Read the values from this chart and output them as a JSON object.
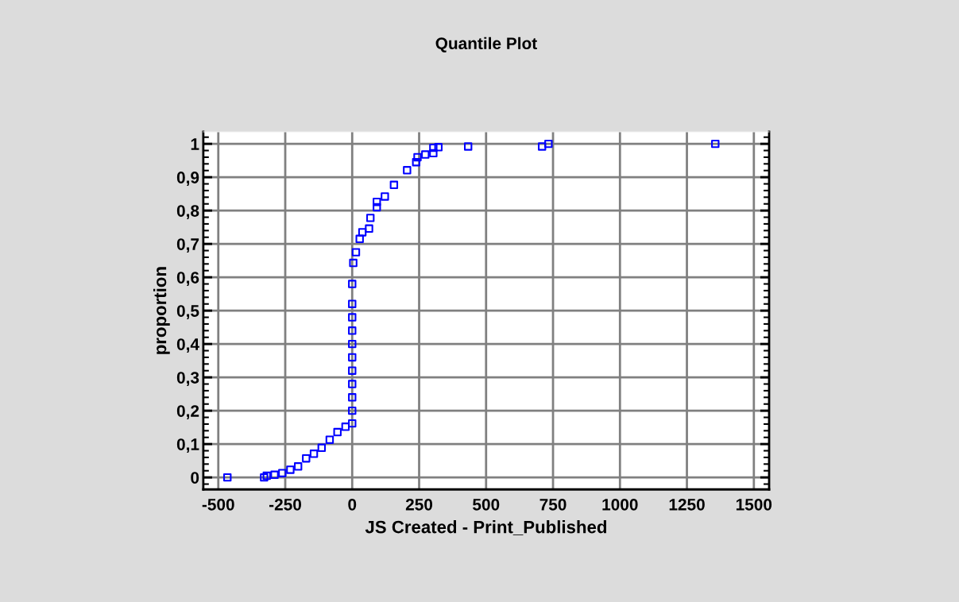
{
  "chart_data": {
    "type": "scatter",
    "title": "Quantile Plot",
    "xlabel": "JS Created - Print_Published",
    "ylabel": "proportion",
    "x": [
      -466,
      -329,
      -319,
      -290,
      -261,
      -231,
      -202,
      -172,
      -143,
      -114,
      -84,
      -55,
      -25,
      0,
      0,
      0,
      0,
      0,
      0,
      0,
      0,
      0,
      0,
      0,
      4,
      14,
      28,
      38,
      63,
      68,
      92,
      92,
      122,
      156,
      205,
      239,
      244,
      273,
      303,
      303,
      322,
      433,
      709,
      733,
      1356
    ],
    "series": [
      {
        "color": "#0000ff",
        "values": [
          0,
          0,
          0.005,
          0.008,
          0.013,
          0.023,
          0.033,
          0.057,
          0.071,
          0.089,
          0.113,
          0.136,
          0.152,
          0.162,
          0.2,
          0.24,
          0.28,
          0.32,
          0.36,
          0.4,
          0.44,
          0.48,
          0.52,
          0.58,
          0.643,
          0.675,
          0.715,
          0.735,
          0.746,
          0.778,
          0.81,
          0.826,
          0.842,
          0.877,
          0.921,
          0.945,
          0.96,
          0.968,
          0.972,
          0.988,
          0.99,
          0.992,
          0.992,
          1,
          1
        ]
      }
    ],
    "marker": "square",
    "grid": true,
    "legend": false,
    "xlim": [
      -556,
      1557
    ],
    "xticks": [
      -500,
      -250,
      0,
      250,
      500,
      750,
      1000,
      1250,
      1500
    ],
    "ylim": [
      -0.036,
      1.036
    ],
    "yticks": [
      0,
      {
        "value": 0.1,
        "label": "0,1"
      },
      {
        "value": 0.2,
        "label": "0,2"
      },
      {
        "value": 0.3,
        "label": "0,3"
      },
      {
        "value": 0.4,
        "label": "0,4"
      },
      {
        "value": 0.5,
        "label": "0,5"
      },
      {
        "value": 0.6,
        "label": "0,6"
      },
      {
        "value": 0.7,
        "label": "0,7"
      },
      {
        "value": 0.8,
        "label": "0,8"
      },
      {
        "value": 0.9,
        "label": "0,9"
      },
      1
    ]
  }
}
